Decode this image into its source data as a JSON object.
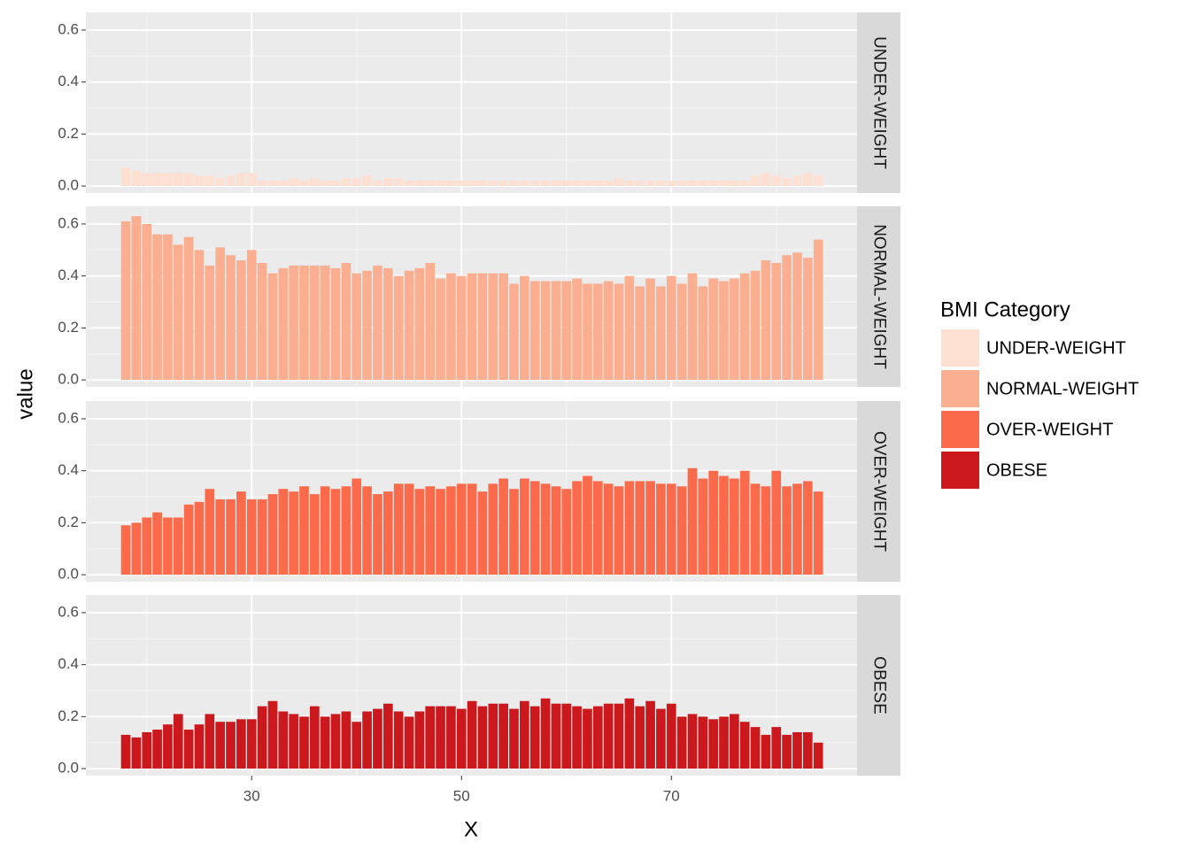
{
  "chart_data": {
    "type": "bar",
    "xlabel": "X",
    "ylabel": "value",
    "legend_title": "BMI Category",
    "x": [
      18,
      19,
      20,
      21,
      22,
      23,
      24,
      25,
      26,
      27,
      28,
      29,
      30,
      31,
      32,
      33,
      34,
      35,
      36,
      37,
      38,
      39,
      40,
      41,
      42,
      43,
      44,
      45,
      46,
      47,
      48,
      49,
      50,
      51,
      52,
      53,
      54,
      55,
      56,
      57,
      58,
      59,
      60,
      61,
      62,
      63,
      64,
      65,
      66,
      67,
      68,
      69,
      70,
      71,
      72,
      73,
      74,
      75,
      76,
      77,
      78,
      79,
      80,
      81,
      82,
      83,
      84
    ],
    "series": [
      {
        "name": "UNDER-WEIGHT",
        "color": "#fee0d2",
        "values": [
          0.07,
          0.06,
          0.05,
          0.05,
          0.05,
          0.05,
          0.05,
          0.04,
          0.04,
          0.03,
          0.04,
          0.05,
          0.05,
          0.02,
          0.02,
          0.02,
          0.03,
          0.02,
          0.03,
          0.02,
          0.02,
          0.03,
          0.03,
          0.04,
          0.02,
          0.03,
          0.03,
          0.02,
          0.02,
          0.02,
          0.02,
          0.02,
          0.02,
          0.02,
          0.02,
          0.02,
          0.02,
          0.02,
          0.02,
          0.02,
          0.02,
          0.02,
          0.02,
          0.02,
          0.02,
          0.02,
          0.02,
          0.03,
          0.02,
          0.02,
          0.02,
          0.02,
          0.02,
          0.02,
          0.02,
          0.02,
          0.02,
          0.02,
          0.02,
          0.02,
          0.04,
          0.05,
          0.04,
          0.03,
          0.04,
          0.05,
          0.04
        ]
      },
      {
        "name": "NORMAL-WEIGHT",
        "color": "#fcae91",
        "values": [
          0.61,
          0.63,
          0.6,
          0.56,
          0.56,
          0.52,
          0.55,
          0.5,
          0.44,
          0.51,
          0.48,
          0.46,
          0.5,
          0.45,
          0.41,
          0.43,
          0.44,
          0.44,
          0.44,
          0.44,
          0.43,
          0.45,
          0.41,
          0.42,
          0.44,
          0.43,
          0.4,
          0.42,
          0.43,
          0.45,
          0.39,
          0.41,
          0.4,
          0.41,
          0.41,
          0.41,
          0.41,
          0.37,
          0.4,
          0.38,
          0.38,
          0.38,
          0.38,
          0.39,
          0.37,
          0.37,
          0.38,
          0.37,
          0.4,
          0.36,
          0.39,
          0.36,
          0.4,
          0.37,
          0.41,
          0.36,
          0.39,
          0.38,
          0.39,
          0.41,
          0.42,
          0.46,
          0.45,
          0.48,
          0.49,
          0.47,
          0.54
        ]
      },
      {
        "name": "OVER-WEIGHT",
        "color": "#fb6a4a",
        "values": [
          0.19,
          0.2,
          0.22,
          0.24,
          0.22,
          0.22,
          0.27,
          0.28,
          0.33,
          0.29,
          0.29,
          0.32,
          0.29,
          0.29,
          0.31,
          0.33,
          0.32,
          0.34,
          0.31,
          0.34,
          0.33,
          0.34,
          0.37,
          0.34,
          0.31,
          0.32,
          0.35,
          0.35,
          0.33,
          0.34,
          0.33,
          0.34,
          0.35,
          0.35,
          0.32,
          0.35,
          0.37,
          0.33,
          0.37,
          0.36,
          0.35,
          0.34,
          0.33,
          0.36,
          0.38,
          0.36,
          0.35,
          0.34,
          0.36,
          0.36,
          0.36,
          0.35,
          0.35,
          0.34,
          0.41,
          0.37,
          0.4,
          0.38,
          0.37,
          0.4,
          0.35,
          0.34,
          0.4,
          0.34,
          0.35,
          0.36,
          0.32
        ]
      },
      {
        "name": "OBESE",
        "color": "#cb181d",
        "values": [
          0.13,
          0.12,
          0.14,
          0.15,
          0.17,
          0.21,
          0.15,
          0.17,
          0.21,
          0.18,
          0.18,
          0.19,
          0.19,
          0.24,
          0.26,
          0.22,
          0.21,
          0.2,
          0.24,
          0.2,
          0.21,
          0.22,
          0.18,
          0.22,
          0.23,
          0.25,
          0.22,
          0.2,
          0.22,
          0.24,
          0.24,
          0.24,
          0.23,
          0.26,
          0.24,
          0.25,
          0.25,
          0.23,
          0.26,
          0.24,
          0.27,
          0.25,
          0.25,
          0.24,
          0.23,
          0.24,
          0.25,
          0.25,
          0.27,
          0.24,
          0.26,
          0.23,
          0.25,
          0.2,
          0.21,
          0.2,
          0.19,
          0.2,
          0.21,
          0.18,
          0.16,
          0.13,
          0.16,
          0.13,
          0.14,
          0.14,
          0.1
        ]
      }
    ],
    "xlim": [
      14.2,
      87.7
    ],
    "xticks": [
      30,
      50,
      70
    ],
    "ylim": [
      -0.027,
      0.668
    ],
    "yticks": [
      {
        "value": 0,
        "label": "0.0"
      },
      0.2,
      0.4,
      0.6
    ],
    "grid": true,
    "legend": "right"
  }
}
